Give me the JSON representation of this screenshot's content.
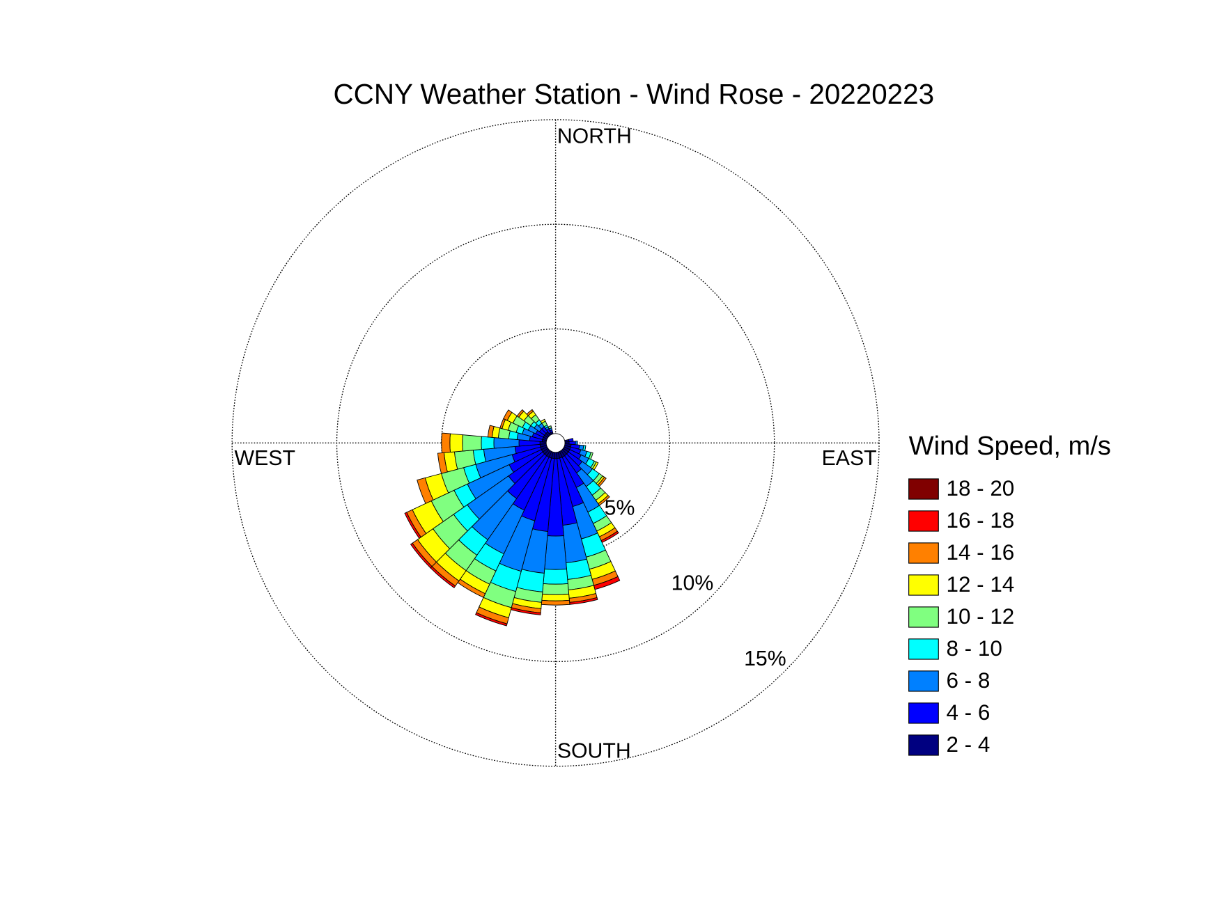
{
  "chart_data": {
    "type": "windrose",
    "title": "CCNY Weather Station - Wind Rose - 20220223",
    "legend_title": "Wind Speed, m/s",
    "compass": [
      "NORTH",
      "EAST",
      "SOUTH",
      "WEST"
    ],
    "x": [
      80,
      90,
      100,
      110,
      120,
      130,
      140,
      150,
      160,
      170,
      180,
      190,
      200,
      210,
      220,
      230,
      240,
      250,
      260,
      270,
      280,
      290,
      300,
      310,
      320,
      330,
      340
    ],
    "rlim": [
      0,
      15
    ],
    "rticks": [
      {
        "value": 5,
        "label": "5%"
      },
      {
        "value": 10,
        "label": "10%"
      },
      {
        "value": 15,
        "label": "15%"
      }
    ],
    "series": [
      {
        "name": "2 - 4",
        "color": "#000080",
        "values": [
          0.2,
          0.2,
          0.3,
          0.3,
          0.3,
          0.3,
          0.3,
          0.3,
          0.3,
          0.3,
          0.3,
          0.3,
          0.3,
          0.3,
          0.3,
          0.3,
          0.3,
          0.3,
          0.3,
          0.3,
          0.2,
          0.2,
          0.2,
          0.2,
          0.2,
          0.1,
          0.1
        ]
      },
      {
        "name": "4 - 6",
        "color": "#0000ff",
        "values": [
          0.2,
          0.3,
          0.4,
          0.5,
          0.6,
          0.8,
          1.0,
          1.6,
          2.4,
          3.2,
          3.7,
          3.5,
          3.1,
          2.8,
          2.5,
          2.0,
          1.7,
          1.4,
          1.2,
          1.0,
          0.6,
          0.5,
          0.4,
          0.3,
          0.3,
          0.2,
          0.1
        ]
      },
      {
        "name": "6 - 8",
        "color": "#0080ff",
        "values": [
          0,
          0.1,
          0.2,
          0.3,
          0.4,
          0.6,
          0.8,
          1.3,
          1.6,
          1.8,
          1.6,
          2.0,
          2.5,
          2.3,
          2.4,
          2.4,
          2.2,
          1.8,
          1.5,
          1.2,
          0.6,
          0.5,
          0.4,
          0.3,
          0.2,
          0.1,
          0.1
        ]
      },
      {
        "name": "8 - 10",
        "color": "#00ffff",
        "values": [
          0,
          0,
          0.1,
          0.2,
          0.3,
          0.4,
          0.5,
          0.6,
          0.9,
          0.8,
          0.7,
          0.9,
          1.0,
          0.9,
          0.9,
          0.8,
          0.7,
          0.6,
          0.5,
          0.6,
          0.4,
          0.3,
          0.3,
          0.2,
          0.2,
          0.1,
          0
        ]
      },
      {
        "name": "10 - 12",
        "color": "#80ff80",
        "values": [
          0,
          0,
          0,
          0.1,
          0.1,
          0.2,
          0.3,
          0.4,
          0.6,
          0.5,
          0.5,
          0.5,
          0.8,
          0.7,
          0.9,
          1.2,
          1.2,
          1.1,
          0.9,
          0.9,
          0.5,
          0.4,
          0.5,
          0.4,
          0.3,
          0.2,
          0.1
        ]
      },
      {
        "name": "12 - 14",
        "color": "#ffff00",
        "values": [
          0,
          0,
          0,
          0,
          0.1,
          0.1,
          0.2,
          0.3,
          0.5,
          0.4,
          0.3,
          0.3,
          0.5,
          0.5,
          0.6,
          0.9,
          1.0,
          0.8,
          0.5,
          0.6,
          0.3,
          0.3,
          0.3,
          0.3,
          0.2,
          0.1,
          0
        ]
      },
      {
        "name": "14 - 16",
        "color": "#ff8000",
        "values": [
          0,
          0,
          0,
          0,
          0,
          0.1,
          0.1,
          0.2,
          0.3,
          0.2,
          0.2,
          0.2,
          0.3,
          0.2,
          0.3,
          0.3,
          0.3,
          0.4,
          0.3,
          0.4,
          0.2,
          0.1,
          0.2,
          0.1,
          0.1,
          0,
          0
        ]
      },
      {
        "name": "16 - 18",
        "color": "#ff0000",
        "values": [
          0,
          0,
          0,
          0,
          0,
          0,
          0,
          0.1,
          0.2,
          0.1,
          0,
          0.1,
          0.1,
          0,
          0.1,
          0.1,
          0.1,
          0,
          0,
          0,
          0,
          0,
          0,
          0,
          0,
          0,
          0
        ]
      },
      {
        "name": "18 - 20",
        "color": "#800000",
        "values": [
          0,
          0,
          0,
          0,
          0,
          0,
          0,
          0,
          0,
          0,
          0,
          0,
          0,
          0,
          0,
          0,
          0,
          0,
          0,
          0,
          0,
          0,
          0,
          0,
          0,
          0,
          0
        ]
      }
    ]
  }
}
